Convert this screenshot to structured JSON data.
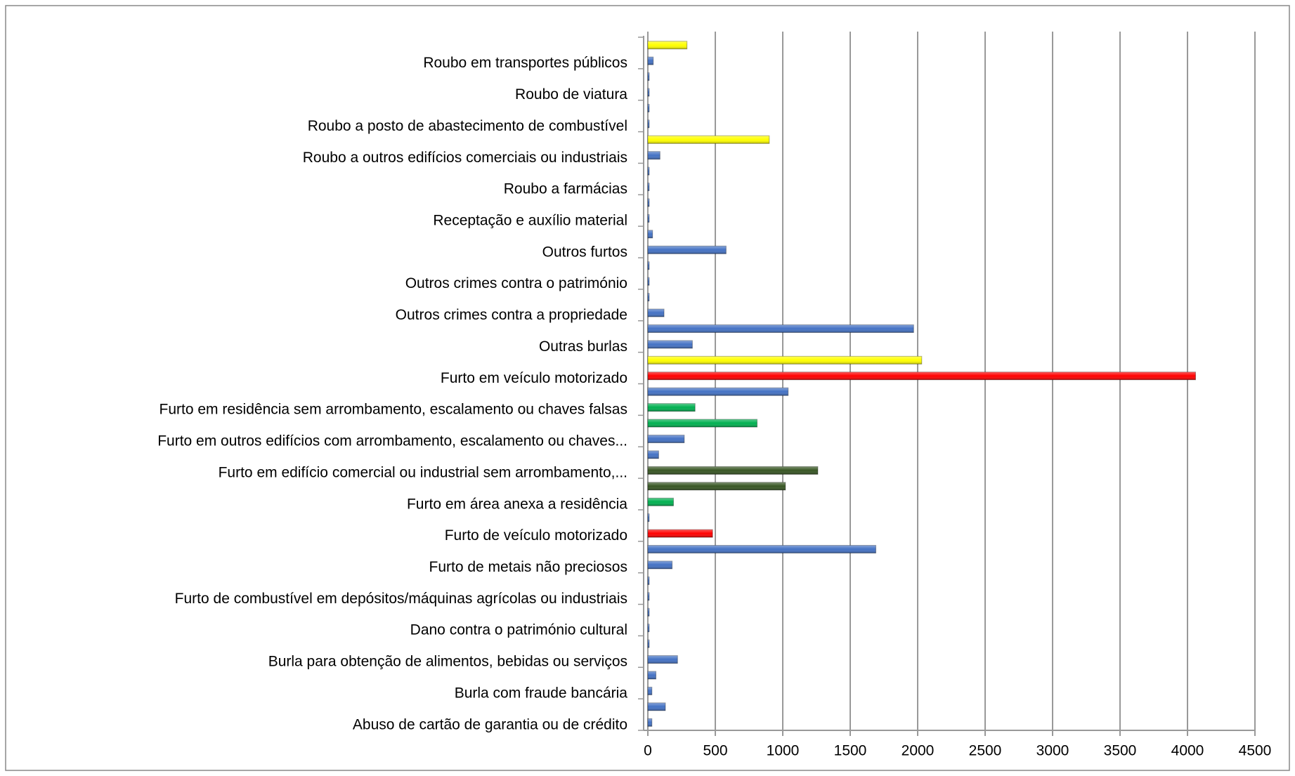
{
  "chart_data": {
    "type": "bar",
    "orientation": "horizontal",
    "categories": [
      "Abuso de cartão de garantia ou de crédito",
      null,
      "Burla com fraude bancária",
      null,
      "Burla para obtenção de alimentos, bebidas ou serviços",
      null,
      "Dano contra o património cultural",
      null,
      "Furto de combustível em depósitos/máquinas agrícolas ou industriais",
      null,
      "Furto de metais não preciosos",
      null,
      "Furto de veículo motorizado",
      null,
      "Furto em área anexa a residência",
      null,
      "Furto em edifício comercial ou industrial sem arrombamento,...",
      null,
      "Furto em outros edifícios com arrombamento, escalamento ou chaves...",
      null,
      "Furto em residência sem arrombamento, escalamento ou chaves falsas",
      null,
      "Furto em veículo motorizado",
      null,
      "Outras burlas",
      null,
      "Outros crimes contra a propriedade",
      null,
      "Outros crimes contra o património",
      null,
      "Outros furtos",
      null,
      "Receptação e auxílio material",
      null,
      "Roubo a farmácias",
      null,
      "Roubo a outros edifícios comerciais ou industriais",
      null,
      "Roubo a posto de abastecimento de combustível",
      null,
      "Roubo de viatura",
      null,
      "Roubo em transportes públicos",
      null
    ],
    "values": [
      30,
      130,
      30,
      60,
      220,
      10,
      10,
      10,
      10,
      10,
      180,
      1690,
      480,
      10,
      190,
      1020,
      1260,
      80,
      270,
      810,
      350,
      1040,
      4060,
      2030,
      330,
      1970,
      120,
      10,
      10,
      10,
      580,
      35,
      10,
      10,
      10,
      10,
      90,
      900,
      10,
      10,
      10,
      10,
      40,
      290
    ],
    "colors": [
      "#4472c4",
      "#4472c4",
      "#4472c4",
      "#4472c4",
      "#4472c4",
      "#4472c4",
      "#4472c4",
      "#4472c4",
      "#4472c4",
      "#4472c4",
      "#4472c4",
      "#4472c4",
      "#ff0000",
      "#4472c4",
      "#00b050",
      "#375623",
      "#375623",
      "#4472c4",
      "#4472c4",
      "#00b050",
      "#00b050",
      "#4472c4",
      "#ff0000",
      "#ffff00",
      "#4472c4",
      "#4472c4",
      "#4472c4",
      "#4472c4",
      "#4472c4",
      "#4472c4",
      "#4472c4",
      "#4472c4",
      "#4472c4",
      "#4472c4",
      "#4472c4",
      "#4472c4",
      "#4472c4",
      "#ffff00",
      "#4472c4",
      "#4472c4",
      "#4472c4",
      "#4472c4",
      "#4472c4",
      "#ffff00"
    ],
    "xlim": [
      0,
      4500
    ],
    "xticks": [
      0,
      500,
      1000,
      1500,
      2000,
      2500,
      3000,
      3500,
      4000,
      4500
    ],
    "grid": true
  }
}
